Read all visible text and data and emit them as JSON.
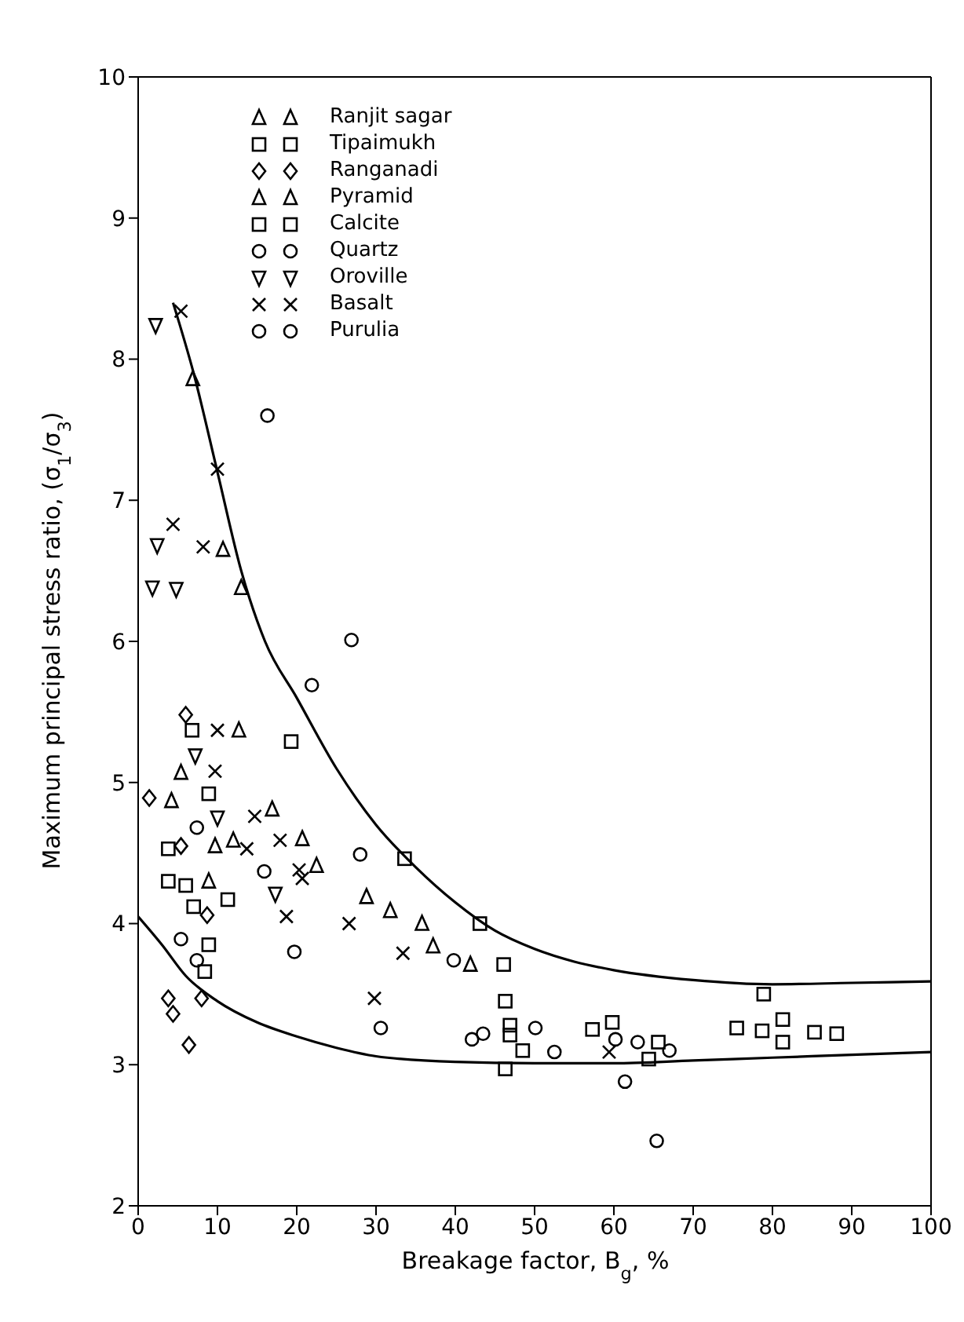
{
  "chart_data": {
    "type": "scatter",
    "xlabel": "Breakage factor, B$_{g}$, %",
    "ylabel": "Maximum principal stress ratio, (σ$_{1}$/σ$_{3}$)",
    "xlim": [
      0,
      100
    ],
    "xticks": [
      0,
      10,
      20,
      30,
      40,
      50,
      60,
      70,
      80,
      90,
      100
    ],
    "ylim": [
      2,
      10
    ],
    "yticks": [
      2,
      3,
      4,
      5,
      6,
      7,
      8,
      9,
      10
    ],
    "legend": "top left",
    "series": [
      {
        "name": "Ranjit sagar",
        "color": "#000000",
        "marker": "triangle",
        "x": [
          5.4,
          4.2,
          9.7,
          12,
          8.9
        ],
        "values": [
          5.07,
          4.87,
          4.55,
          4.59,
          4.3
        ]
      },
      {
        "name": "Tipaimukh",
        "color": "#000000",
        "marker": "square",
        "x": [
          6.8,
          8.9,
          3.8,
          3.8,
          6,
          11.3,
          7,
          8.9,
          8.4,
          59.8,
          65.6,
          78.9,
          78.7,
          81.3,
          85.3
        ],
        "values": [
          5.37,
          4.92,
          4.53,
          4.3,
          4.27,
          4.17,
          4.12,
          3.85,
          3.66,
          3.3,
          3.16,
          3.5,
          3.24,
          3.32,
          3.23
        ]
      },
      {
        "name": "Ranganadi",
        "color": "#000000",
        "marker": "diamond",
        "x": [
          6,
          1.4,
          5.4,
          8.7,
          3.8,
          8,
          4.4,
          6.4
        ],
        "values": [
          5.48,
          4.89,
          4.55,
          4.06,
          3.47,
          3.47,
          3.36,
          3.14
        ]
      },
      {
        "name": "Pyramid",
        "color": "#000000",
        "marker": "triangle",
        "x": [
          6.9,
          10.7,
          13,
          12.7,
          16.9,
          20.7,
          22.5,
          28.8,
          31.8,
          35.8,
          37.2,
          41.9
        ],
        "values": [
          7.86,
          6.65,
          6.38,
          5.37,
          4.81,
          4.6,
          4.41,
          4.19,
          4.09,
          4.0,
          3.84,
          3.71
        ]
      },
      {
        "name": "Calcite",
        "color": "#000000",
        "marker": "square",
        "x": [
          19.3,
          33.6,
          43.1,
          46.1,
          46.3,
          46.9,
          46.9,
          48.5,
          46.3,
          57.3,
          64.4,
          75.5,
          81.3,
          88.1
        ],
        "values": [
          5.29,
          4.46,
          4.0,
          3.71,
          3.45,
          3.28,
          3.21,
          3.1,
          2.97,
          3.25,
          3.04,
          3.26,
          3.16,
          3.22
        ]
      },
      {
        "name": "Quartz",
        "color": "#000000",
        "marker": "circle",
        "x": [
          16.3,
          21.9,
          26.9,
          15.9,
          19.7,
          28,
          39.8,
          30.6,
          42.1,
          43.5,
          50.1,
          52.5,
          60.2,
          61.4,
          63,
          67,
          65.4
        ],
        "values": [
          7.6,
          5.69,
          6.01,
          4.37,
          3.8,
          4.49,
          3.74,
          3.26,
          3.18,
          3.22,
          3.26,
          3.09,
          3.18,
          2.88,
          3.16,
          3.1,
          2.46
        ]
      },
      {
        "name": "Oroville",
        "color": "#000000",
        "marker": "triangle-down",
        "x": [
          2.2,
          2.4,
          1.8,
          4.8,
          7.2,
          10,
          17.3
        ],
        "values": [
          8.24,
          6.68,
          6.38,
          6.37,
          5.19,
          4.75,
          4.21
        ]
      },
      {
        "name": "Basalt",
        "color": "#000000",
        "marker": "cross",
        "x": [
          5.4,
          10,
          4.4,
          8.2,
          10,
          9.7,
          14.7,
          17.9,
          13.7,
          20.3,
          20.7,
          18.7,
          26.6,
          33.4,
          29.8,
          59.4
        ],
        "values": [
          8.34,
          7.22,
          6.83,
          6.67,
          5.37,
          5.08,
          4.76,
          4.59,
          4.53,
          4.38,
          4.32,
          4.05,
          4.0,
          3.79,
          3.47,
          3.09
        ]
      },
      {
        "name": "Purulia",
        "color": "#000000",
        "marker": "circle",
        "x": [
          7.4,
          5.4,
          7.4
        ],
        "values": [
          4.68,
          3.89,
          3.74
        ]
      },
      {
        "type": "line",
        "color": "#000000",
        "marker": "none",
        "x": [
          4.4,
          7,
          10,
          13,
          16,
          20,
          25,
          30,
          35,
          40,
          45,
          50,
          55,
          60,
          70,
          80,
          90,
          100
        ],
        "values": [
          8.4,
          7.9,
          7.2,
          6.5,
          6.0,
          5.6,
          5.1,
          4.7,
          4.4,
          4.15,
          3.95,
          3.82,
          3.73,
          3.67,
          3.6,
          3.57,
          3.58,
          3.59
        ]
      },
      {
        "type": "line",
        "color": "#000000",
        "marker": "none",
        "x": [
          0,
          3,
          6,
          10,
          15,
          20,
          25,
          30,
          40,
          50,
          60,
          70,
          80,
          90,
          100
        ],
        "values": [
          4.05,
          3.85,
          3.63,
          3.45,
          3.3,
          3.2,
          3.12,
          3.06,
          3.02,
          3.01,
          3.01,
          3.03,
          3.05,
          3.07,
          3.09
        ]
      }
    ]
  }
}
